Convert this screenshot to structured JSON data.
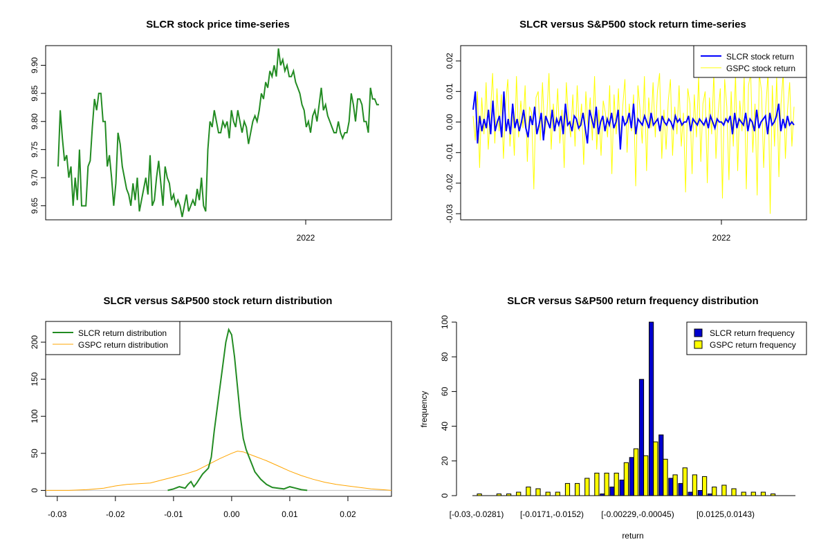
{
  "colors": {
    "slcr_price": "#228b22",
    "slcr_return": "#0000ff",
    "gspc_return": "#ffff00",
    "slcr_density": "#228b22",
    "gspc_density": "#ffa500",
    "slcr_hist": "#0000cd",
    "gspc_hist": "#ffff00"
  },
  "chart_data": [
    {
      "type": "line",
      "title": "SLCR stock price time-series",
      "xlabel": "",
      "ylabel": "",
      "x_ticks": [
        "2022"
      ],
      "y_ticks": [
        "9.65",
        "9.70",
        "9.75",
        "9.80",
        "9.85",
        "9.90"
      ],
      "ylim": [
        9.625,
        9.935
      ],
      "series": [
        {
          "name": "",
          "values": [
            9.72,
            9.82,
            9.77,
            9.73,
            9.74,
            9.7,
            9.72,
            9.65,
            9.7,
            9.66,
            9.75,
            9.65,
            9.65,
            9.65,
            9.72,
            9.73,
            9.79,
            9.84,
            9.82,
            9.85,
            9.85,
            9.8,
            9.8,
            9.72,
            9.74,
            9.7,
            9.65,
            9.69,
            9.78,
            9.76,
            9.72,
            9.7,
            9.68,
            9.67,
            9.65,
            9.69,
            9.66,
            9.7,
            9.64,
            9.66,
            9.68,
            9.7,
            9.67,
            9.74,
            9.65,
            9.66,
            9.7,
            9.73,
            9.69,
            9.65,
            9.72,
            9.7,
            9.69,
            9.66,
            9.67,
            9.65,
            9.66,
            9.65,
            9.63,
            9.65,
            9.67,
            9.64,
            9.65,
            9.66,
            9.65,
            9.68,
            9.66,
            9.7,
            9.65,
            9.64,
            9.75,
            9.8,
            9.79,
            9.82,
            9.8,
            9.78,
            9.78,
            9.8,
            9.79,
            9.8,
            9.77,
            9.82,
            9.8,
            9.79,
            9.82,
            9.8,
            9.78,
            9.8,
            9.79,
            9.76,
            9.78,
            9.8,
            9.81,
            9.8,
            9.82,
            9.85,
            9.84,
            9.87,
            9.86,
            9.89,
            9.88,
            9.9,
            9.88,
            9.93,
            9.9,
            9.91,
            9.89,
            9.9,
            9.88,
            9.88,
            9.89,
            9.87,
            9.86,
            9.85,
            9.83,
            9.82,
            9.79,
            9.8,
            9.78,
            9.81,
            9.82,
            9.8,
            9.83,
            9.86,
            9.82,
            9.83,
            9.81,
            9.8,
            9.79,
            9.78,
            9.78,
            9.8,
            9.78,
            9.77,
            9.78,
            9.78,
            9.8,
            9.85,
            9.83,
            9.8,
            9.84,
            9.84,
            9.83,
            9.8,
            9.8,
            9.78,
            9.86,
            9.84,
            9.84,
            9.83,
            9.83
          ]
        }
      ]
    },
    {
      "type": "line",
      "title": "SLCR versus S&P500 stock return time-series",
      "xlabel": "",
      "ylabel": "",
      "x_ticks": [
        "2022"
      ],
      "y_ticks": [
        "-0.03",
        "-0.02",
        "-0.01",
        "0.00",
        "0.01",
        "0.02"
      ],
      "ylim": [
        -0.032,
        0.025
      ],
      "legend": {
        "position": "top-right",
        "items": [
          "SLCR stock return",
          "GSPC stock return"
        ]
      },
      "series": [
        {
          "name": "SLCR stock return",
          "values": [
            0.004,
            0.01,
            -0.007,
            0.002,
            -0.003,
            0.001,
            -0.002,
            0.004,
            -0.004,
            0.007,
            -0.003,
            0.0,
            0.002,
            -0.005,
            0.01,
            -0.003,
            0.001,
            -0.004,
            0.006,
            -0.002,
            0.001,
            -0.003,
            0.0,
            0.004,
            -0.002,
            -0.005,
            0.002,
            -0.001,
            0.005,
            -0.004,
            -0.001,
            0.003,
            -0.006,
            0.002,
            0.0,
            -0.002,
            0.004,
            -0.003,
            0.001,
            -0.001,
            0.002,
            -0.004,
            0.006,
            -0.001,
            0.0,
            -0.003,
            0.002,
            0.001,
            -0.002,
            -0.001,
            0.003,
            -0.002,
            -0.007,
            0.004,
            0.001,
            -0.002,
            0.005,
            -0.004,
            0.0,
            0.002,
            -0.003,
            0.001,
            -0.001,
            0.003,
            -0.002,
            0.0,
            0.004,
            -0.009,
            0.002,
            -0.001,
            0.0,
            0.003,
            -0.002,
            0.006,
            -0.004,
            0.001,
            0.0,
            -0.001,
            0.002,
            0.0,
            -0.002,
            0.003,
            -0.001,
            0.0,
            0.001,
            -0.003,
            0.002,
            0.0,
            -0.001,
            0.001,
            0.0,
            -0.002,
            0.002,
            0.0,
            0.001,
            -0.001,
            0.0,
            0.0,
            0.002,
            -0.003,
            0.001,
            0.0,
            -0.001,
            0.001,
            0.0,
            -0.001,
            0.001,
            -0.002,
            0.002,
            0.0,
            -0.002,
            0.001,
            0.0,
            0.0,
            -0.001,
            0.001,
            0.0,
            0.002,
            -0.004,
            0.003,
            -0.002,
            0.001,
            0.0,
            -0.001,
            0.003,
            -0.003,
            0.001,
            0.0,
            -0.003,
            0.004,
            -0.002,
            0.0,
            0.001,
            0.002,
            -0.004,
            0.003,
            -0.001,
            0.0,
            0.002,
            0.006,
            -0.003,
            0.001,
            -0.002,
            0.002,
            -0.001,
            0.0,
            -0.001
          ]
        },
        {
          "name": "GSPC stock return",
          "values": [
            0.002,
            -0.006,
            0.01,
            -0.015,
            0.008,
            -0.004,
            0.013,
            -0.009,
            0.003,
            0.016,
            -0.007,
            0.011,
            -0.003,
            0.009,
            -0.012,
            0.006,
            0.014,
            -0.008,
            0.004,
            -0.011,
            0.015,
            -0.005,
            0.007,
            -0.002,
            0.012,
            -0.013,
            0.005,
            0.003,
            -0.022,
            0.008,
            0.01,
            -0.006,
            0.013,
            -0.004,
            0.002,
            0.016,
            -0.009,
            0.006,
            -0.003,
            0.011,
            -0.007,
            0.004,
            -0.015,
            0.013,
            0.001,
            -0.005,
            0.009,
            -0.008,
            0.012,
            -0.003,
            0.006,
            -0.014,
            0.01,
            -0.002,
            0.008,
            -0.006,
            0.015,
            -0.009,
            0.004,
            -0.011,
            0.007,
            0.003,
            -0.005,
            0.012,
            -0.017,
            0.009,
            -0.004,
            0.011,
            -0.008,
            0.005,
            0.014,
            -0.01,
            0.006,
            -0.003,
            0.009,
            -0.021,
            0.012,
            0.004,
            -0.007,
            0.015,
            -0.016,
            0.008,
            -0.002,
            0.013,
            -0.005,
            0.01,
            0.016,
            -0.012,
            0.004,
            -0.009,
            0.007,
            0.014,
            -0.011,
            0.005,
            -0.004,
            0.012,
            -0.008,
            0.003,
            -0.023,
            0.011,
            0.006,
            -0.017,
            0.009,
            -0.005,
            0.015,
            -0.013,
            0.006,
            0.01,
            -0.02,
            0.008,
            -0.004,
            0.016,
            -0.012,
            0.003,
            0.011,
            -0.025,
            0.014,
            0.005,
            -0.019,
            0.01,
            -0.008,
            0.016,
            -0.016,
            0.007,
            -0.003,
            0.015,
            -0.022,
            0.012,
            0.016,
            -0.01,
            0.006,
            -0.024,
            0.016,
            0.01,
            -0.015,
            0.005,
            0.016,
            -0.03,
            0.012,
            -0.008,
            0.015,
            -0.018,
            0.006,
            0.016,
            -0.012,
            0.004,
            0.013,
            -0.008,
            0.005
          ]
        }
      ]
    },
    {
      "type": "line",
      "title": "SLCR versus S&P500 stock return distribution",
      "xlabel": "",
      "ylabel": "",
      "x_ticks": [
        "-0.03",
        "-0.02",
        "-0.01",
        "0.00",
        "0.01",
        "0.02"
      ],
      "y_ticks": [
        "0",
        "50",
        "100",
        "150",
        "200"
      ],
      "xlim": [
        -0.032,
        0.0275
      ],
      "ylim": [
        -8,
        228
      ],
      "legend": {
        "position": "top-left",
        "items": [
          "SLCR return distribution",
          "GSPC return distribution"
        ]
      },
      "series": [
        {
          "name": "SLCR return distribution",
          "x": [
            -0.011,
            -0.01,
            -0.009,
            -0.008,
            -0.0075,
            -0.007,
            -0.0065,
            -0.006,
            -0.005,
            -0.004,
            -0.0035,
            -0.003,
            -0.0025,
            -0.002,
            -0.0015,
            -0.001,
            -0.0005,
            0.0,
            0.0005,
            0.001,
            0.0015,
            0.002,
            0.0025,
            0.003,
            0.0035,
            0.004,
            0.005,
            0.006,
            0.007,
            0.008,
            0.009,
            0.01,
            0.011,
            0.012,
            0.013
          ],
          "y": [
            0,
            2,
            5,
            3,
            8,
            12,
            5,
            10,
            22,
            30,
            45,
            80,
            110,
            140,
            170,
            200,
            217,
            210,
            180,
            140,
            100,
            70,
            55,
            45,
            35,
            25,
            15,
            8,
            4,
            3,
            2,
            5,
            3,
            1,
            0
          ]
        },
        {
          "name": "GSPC return distribution",
          "x": [
            -0.032,
            -0.028,
            -0.025,
            -0.022,
            -0.02,
            -0.018,
            -0.016,
            -0.014,
            -0.012,
            -0.01,
            -0.008,
            -0.006,
            -0.004,
            -0.002,
            0.0,
            0.001,
            0.002,
            0.004,
            0.006,
            0.008,
            0.01,
            0.012,
            0.014,
            0.016,
            0.018,
            0.02,
            0.022,
            0.024,
            0.026,
            0.0275
          ],
          "y": [
            0,
            0,
            1,
            3,
            6,
            8,
            9,
            10,
            14,
            18,
            22,
            27,
            35,
            43,
            50,
            53,
            52,
            46,
            40,
            33,
            26,
            20,
            15,
            11,
            8,
            6,
            4,
            2,
            1,
            0
          ]
        }
      ]
    },
    {
      "type": "bar",
      "title": "SLCR versus S&P500 return frequency distribution",
      "xlabel": "return",
      "ylabel": "frequency",
      "category_labels": [
        "[-0.03,-0.0281)",
        "[-0.0171,-0.0152)",
        "[-0.00229,-0.00045)",
        "[0.0125,0.0143)"
      ],
      "y_ticks": [
        "0",
        "20",
        "40",
        "60",
        "80",
        "100"
      ],
      "ylim": [
        0,
        100
      ],
      "legend": {
        "position": "top-right",
        "items": [
          "SLCR return frequency",
          "GSPC return frequency"
        ]
      },
      "series": [
        {
          "name": "SLCR return frequency",
          "values": [
            0,
            0,
            0,
            0,
            0,
            0,
            0,
            0,
            0,
            0,
            0,
            0,
            0,
            1,
            5,
            9,
            22,
            67,
            100,
            35,
            10,
            7,
            2,
            3,
            1,
            0,
            0,
            0,
            0,
            0,
            0,
            0,
            0
          ]
        },
        {
          "name": "GSPC return frequency",
          "values": [
            1,
            0,
            1,
            1,
            2,
            5,
            4,
            2,
            2,
            7,
            7,
            10,
            13,
            13,
            13,
            19,
            27,
            23,
            31,
            21,
            12,
            16,
            12,
            11,
            5,
            6,
            4,
            2,
            2,
            2,
            1,
            0,
            0
          ]
        }
      ]
    }
  ]
}
